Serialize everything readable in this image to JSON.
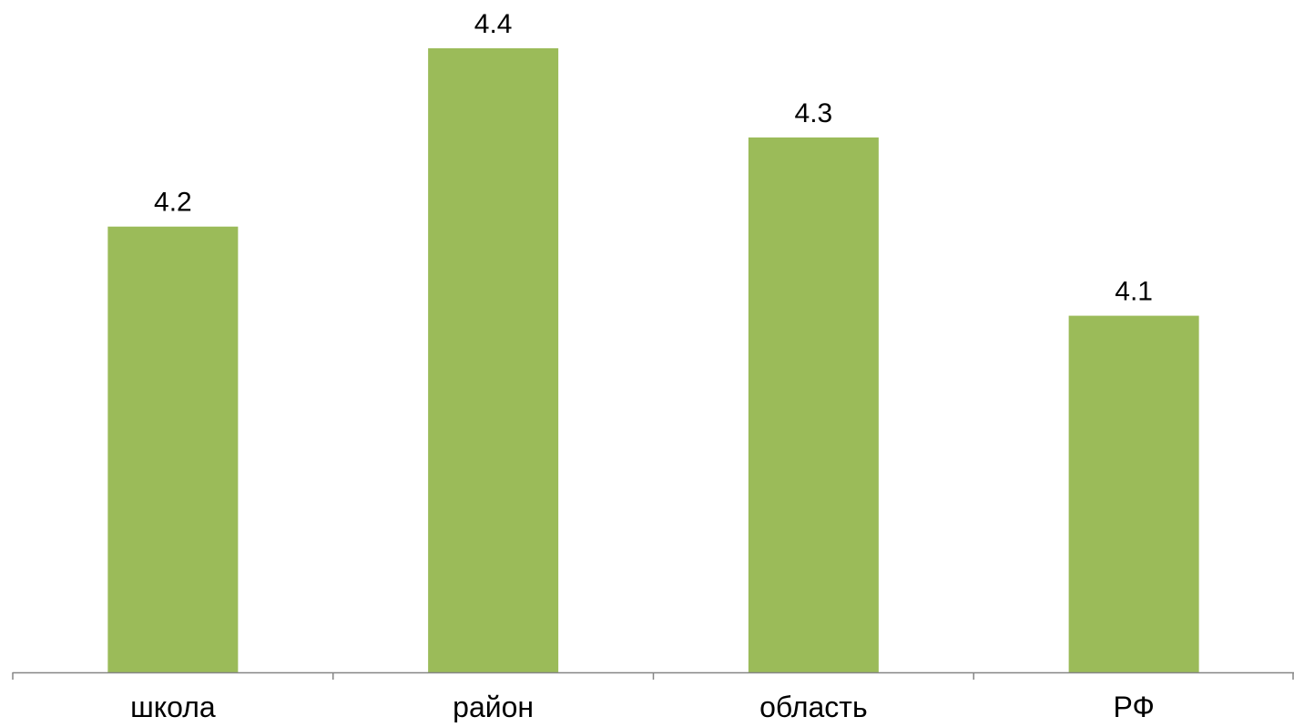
{
  "chart_data": {
    "type": "bar",
    "categories": [
      "школа",
      "район",
      "область",
      "РФ"
    ],
    "values": [
      4.2,
      4.4,
      4.3,
      4.1
    ],
    "data_labels": [
      "4.2",
      "4.4",
      "4.3",
      "4.1"
    ],
    "title": "",
    "xlabel": "",
    "ylabel": "",
    "ylim": [
      3.7,
      4.4
    ],
    "grid": false,
    "legend": "none",
    "y_axis_visible": false
  },
  "colors": {
    "bar": "#9BBB59",
    "axis": "#868686",
    "text": "#000000",
    "background": "#FFFFFF"
  }
}
